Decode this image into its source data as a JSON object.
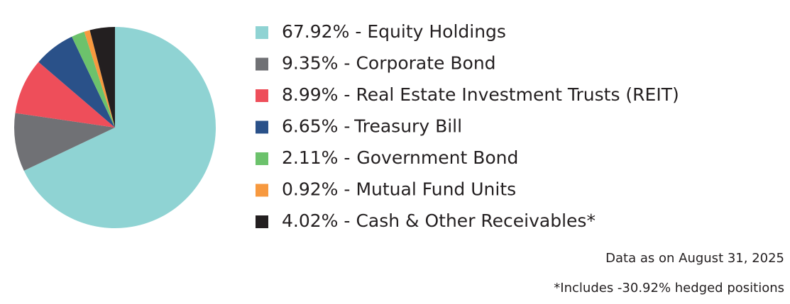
{
  "chart_data": {
    "type": "pie",
    "categories": [
      "Equity Holdings",
      "Corporate Bond",
      "Real Estate Investment Trusts (REIT)",
      "Treasury Bill",
      "Government Bond",
      "Mutual Fund Units",
      "Cash & Other Receivables*"
    ],
    "values": [
      67.92,
      9.35,
      8.99,
      6.65,
      2.11,
      0.92,
      4.02
    ],
    "value_labels": [
      "67.92%",
      "9.35%",
      "8.99%",
      "6.65%",
      "2.11%",
      "0.92%",
      "4.02%"
    ],
    "label_separator": "-",
    "colors": [
      "#8fd3d3",
      "#707175",
      "#ee4e5a",
      "#2a5189",
      "#6cc26c",
      "#f7993f",
      "#231f20"
    ],
    "notes": [
      "Data as on August 31, 2025",
      "*Includes -30.92% hedged positions"
    ]
  }
}
